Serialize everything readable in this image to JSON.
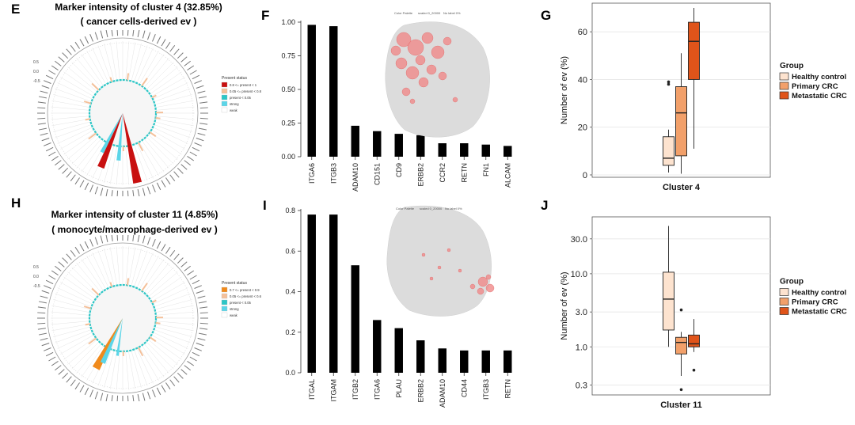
{
  "panels": {
    "E": {
      "letter": "E",
      "title": "Marker intensity of cluster 4 (32.85%)",
      "subtitle": "( cancer cells-derived ev )",
      "legend_title": "Present status",
      "legend": [
        {
          "label": "0.8 <= present < 1",
          "color": "#c81010"
        },
        {
          "label": "0.05 <= present < 0.8",
          "color": "#f4c09a"
        },
        {
          "label": "present < 0.05",
          "color": "#2cc6c6"
        },
        {
          "label": "strong",
          "color": "#5bd5e8"
        },
        {
          "label": "weak",
          "color": "#ffffff"
        }
      ],
      "axis_ticks": [
        "0.5",
        "0.0",
        "-0.5"
      ]
    },
    "H": {
      "letter": "H",
      "title": "Marker intensity of cluster 11 (4.85%)",
      "subtitle": "( monocyte/macrophage-derived ev )",
      "legend_title": "Present status",
      "legend": [
        {
          "label": "0.7 <= present < 0.9",
          "color": "#f08a1c"
        },
        {
          "label": "0.05 <= present < 0.6",
          "color": "#f4c09a"
        },
        {
          "label": "present < 0.05",
          "color": "#2cc6c6"
        },
        {
          "label": "strong",
          "color": "#5bd5e8"
        },
        {
          "label": "weak",
          "color": "#ffffff"
        }
      ],
      "axis_ticks": [
        "0.5",
        "0.0",
        "-0.5"
      ]
    },
    "F": {
      "letter": "F",
      "inset_legend": [
        "Color Palette",
        "scaled 0_20000",
        "No label 0%"
      ]
    },
    "I": {
      "letter": "I",
      "inset_legend": [
        "Color Palette",
        "scaled 0_20000",
        "No label 0%"
      ]
    },
    "G": {
      "letter": "G"
    },
    "J": {
      "letter": "J"
    }
  },
  "chart_data": [
    {
      "id": "F",
      "type": "bar",
      "categories": [
        "ITGA6",
        "ITGB3",
        "ADAM10",
        "CD151",
        "CD9",
        "ERBB2",
        "CCR2",
        "RETN",
        "FN1",
        "ALCAM"
      ],
      "values": [
        0.98,
        0.97,
        0.23,
        0.19,
        0.17,
        0.16,
        0.1,
        0.1,
        0.09,
        0.08
      ],
      "ylim": [
        0,
        1.0
      ],
      "yticks": [
        "0.00",
        "0.25",
        "0.50",
        "0.75",
        "1.00"
      ],
      "bar_color": "#000000"
    },
    {
      "id": "I",
      "type": "bar",
      "categories": [
        "ITGAL",
        "ITGAM",
        "ITGB2",
        "ITGA6",
        "PLAU",
        "ERBB2",
        "ADAM10",
        "CD44",
        "ITGB3",
        "RETN"
      ],
      "values": [
        0.78,
        0.78,
        0.53,
        0.26,
        0.22,
        0.16,
        0.12,
        0.11,
        0.11,
        0.11
      ],
      "ylim": [
        0,
        0.8
      ],
      "yticks": [
        "0.0",
        "0.2",
        "0.4",
        "0.6",
        "0.8"
      ],
      "bar_color": "#000000"
    },
    {
      "id": "G",
      "type": "box",
      "xlabel": "Cluster 4",
      "ylabel": "Number of ev (%)",
      "ylim": [
        -1,
        72
      ],
      "yticks": [
        0,
        20,
        40,
        60
      ],
      "legend_title": "Group",
      "groups": [
        {
          "name": "Healthy control",
          "color": "#fde3cf",
          "min": 1,
          "q1": 4,
          "median": 7,
          "q3": 16,
          "max": 19,
          "outliers": [
            38,
            39
          ]
        },
        {
          "name": "Primary CRC",
          "color": "#f2a06a",
          "min": 0.5,
          "q1": 8,
          "median": 26,
          "q3": 37,
          "max": 51,
          "outliers": []
        },
        {
          "name": "Metastatic CRC",
          "color": "#e0541a",
          "min": 11,
          "q1": 40,
          "median": 56,
          "q3": 64,
          "max": 70,
          "outliers": []
        }
      ]
    },
    {
      "id": "J",
      "type": "box",
      "scale": "log",
      "xlabel": "Cluster 11",
      "ylabel": "Number of ev (%)",
      "ylim": [
        0.22,
        60
      ],
      "yticks": [
        0.3,
        1.0,
        3.0,
        10.0,
        30.0
      ],
      "ytick_labels": [
        "0.3",
        "1.0",
        "3.0",
        "10.0",
        "30.0"
      ],
      "legend_title": "Group",
      "groups": [
        {
          "name": "Healthy control",
          "color": "#fde3cf",
          "min": 1.0,
          "q1": 1.7,
          "median": 4.5,
          "q3": 10.5,
          "max": 45,
          "outliers": []
        },
        {
          "name": "Primary CRC",
          "color": "#f2a06a",
          "min": 0.4,
          "q1": 0.8,
          "median": 1.15,
          "q3": 1.35,
          "max": 1.6,
          "outliers": [
            3.2,
            0.26
          ]
        },
        {
          "name": "Metastatic CRC",
          "color": "#e0541a",
          "min": 0.85,
          "q1": 1.0,
          "median": 1.1,
          "q3": 1.45,
          "max": 2.4,
          "outliers": [
            0.48
          ]
        }
      ]
    }
  ]
}
